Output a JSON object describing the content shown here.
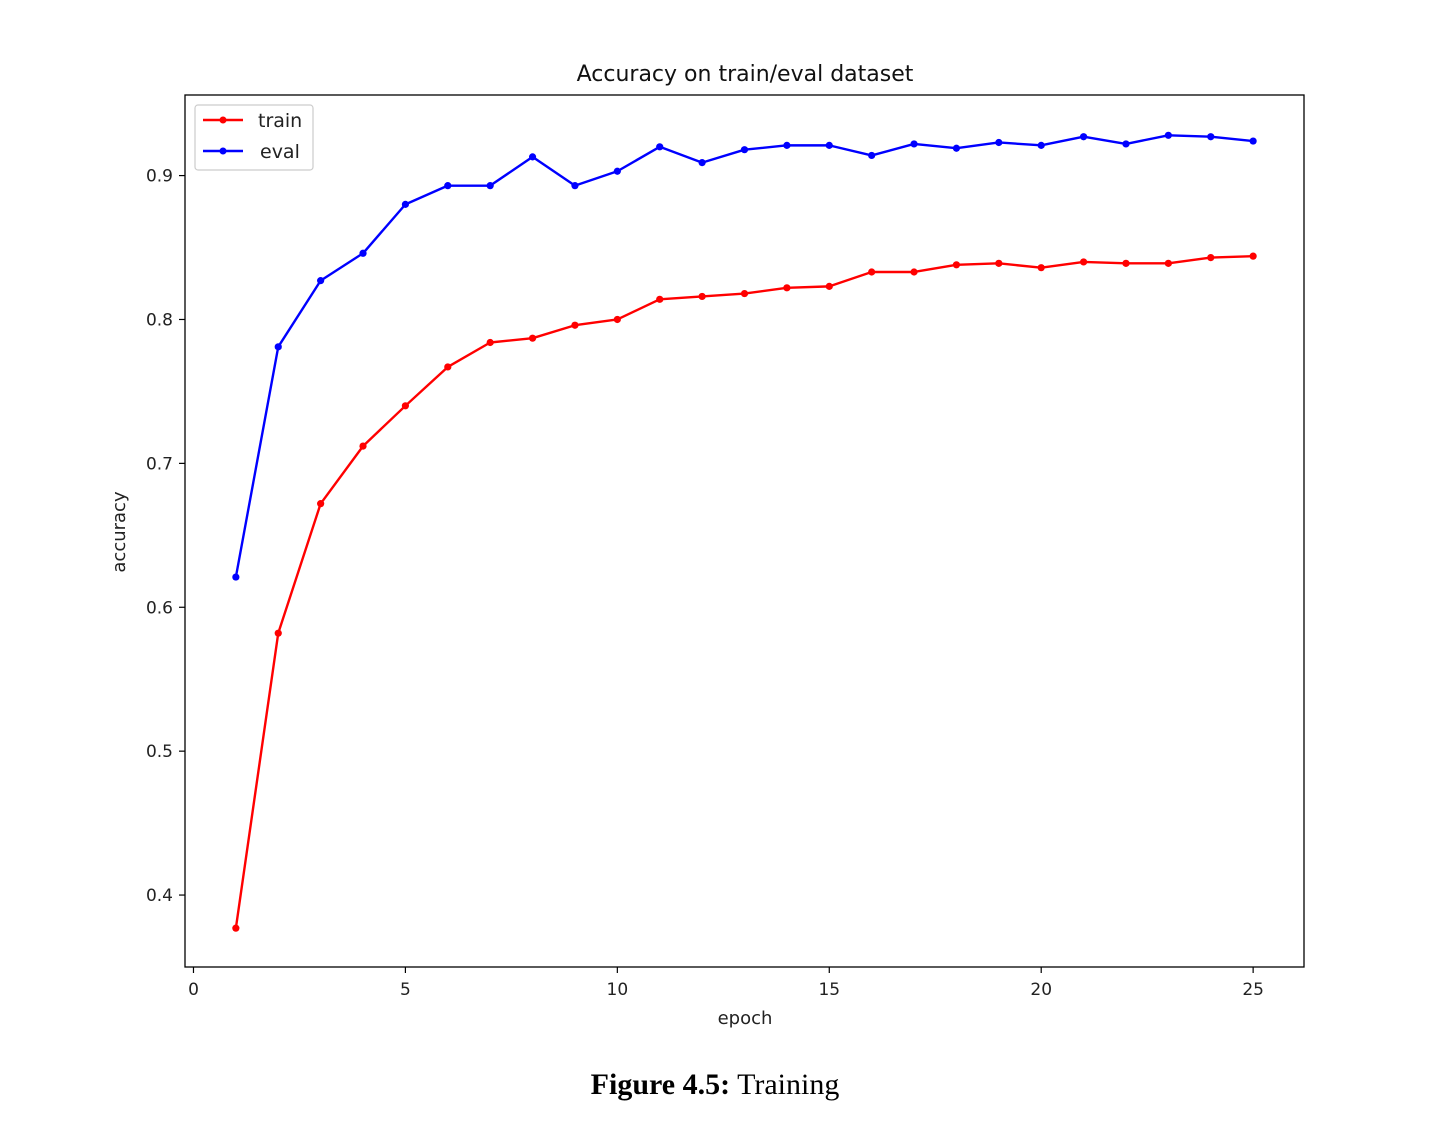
{
  "caption": {
    "label": "Figure 4.5:",
    "text": " Training"
  },
  "chart_data": {
    "type": "line",
    "title": "Accuracy on train/eval dataset",
    "xlabel": "epoch",
    "ylabel": "accuracy",
    "xlim": [
      -0.2,
      26.2
    ],
    "ylim": [
      0.35,
      0.956
    ],
    "xticks": [
      0,
      5,
      10,
      15,
      20,
      25
    ],
    "yticks": [
      0.4,
      0.5,
      0.6,
      0.7,
      0.8,
      0.9
    ],
    "grid": false,
    "legend_position": "top-left",
    "x": [
      1,
      2,
      3,
      4,
      5,
      6,
      7,
      8,
      9,
      10,
      11,
      12,
      13,
      14,
      15,
      16,
      17,
      18,
      19,
      20,
      21,
      22,
      23,
      24,
      25
    ],
    "series": [
      {
        "name": "train",
        "color": "#ff0000",
        "marker": "dot",
        "values": [
          0.377,
          0.582,
          0.672,
          0.712,
          0.74,
          0.767,
          0.784,
          0.787,
          0.796,
          0.8,
          0.814,
          0.816,
          0.818,
          0.822,
          0.823,
          0.833,
          0.833,
          0.838,
          0.839,
          0.836,
          0.84,
          0.839,
          0.839,
          0.843,
          0.844
        ]
      },
      {
        "name": "eval",
        "color": "#0000ff",
        "marker": "dot",
        "values": [
          0.621,
          0.781,
          0.827,
          0.846,
          0.88,
          0.893,
          0.893,
          0.913,
          0.893,
          0.903,
          0.92,
          0.909,
          0.918,
          0.921,
          0.921,
          0.914,
          0.922,
          0.919,
          0.923,
          0.921,
          0.927,
          0.922,
          0.928,
          0.927,
          0.924
        ]
      }
    ]
  }
}
